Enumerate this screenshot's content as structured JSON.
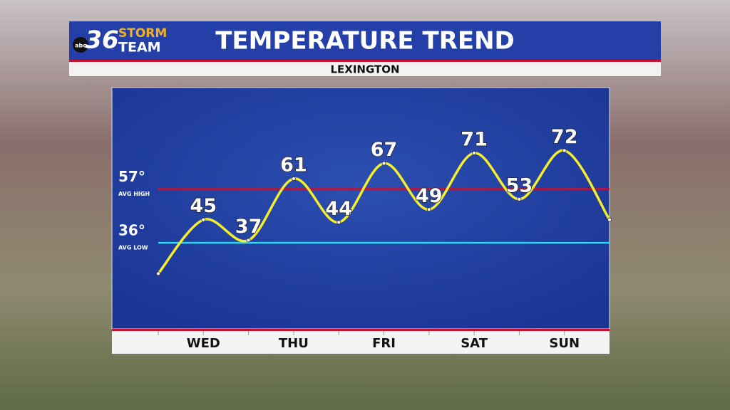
{
  "chart_data": {
    "type": "line",
    "brand": {
      "badge": "abc",
      "number": "36",
      "line1": "STORM",
      "line2": "TEAM"
    },
    "title": "TEMPERATURE TREND",
    "subtitle": "LEXINGTON",
    "categories": [
      null,
      "WED",
      null,
      "THU",
      null,
      "FRI",
      null,
      "SAT",
      null,
      "SUN",
      null
    ],
    "values": [
      24,
      45,
      37,
      61,
      44,
      67,
      49,
      71,
      53,
      72,
      45
    ],
    "color": "#f5ee2a",
    "ylim": [
      3,
      96
    ],
    "reference_lines": [
      {
        "value": 57,
        "label": "57°",
        "sublabel": "AVG HIGH",
        "color": "#c8102e"
      },
      {
        "value": 36,
        "label": "36°",
        "sublabel": "AVG LOW",
        "color": "#2fd6f0"
      }
    ]
  }
}
